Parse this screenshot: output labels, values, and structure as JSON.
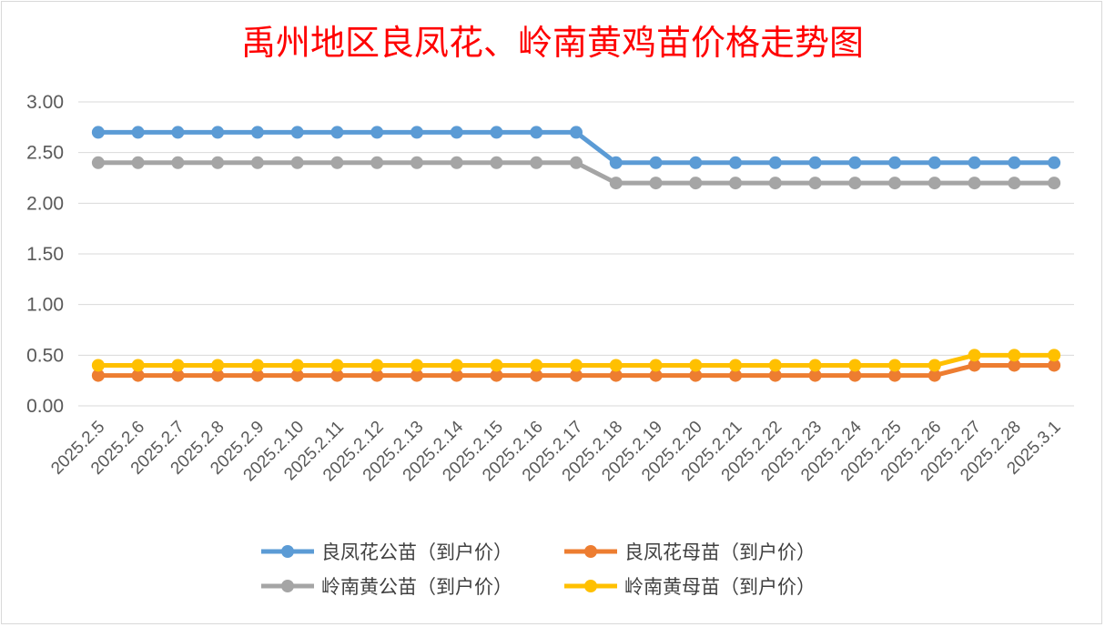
{
  "chart_data": {
    "type": "line",
    "title": "禹州地区良凤花、岭南黄鸡苗价格走势图",
    "categories": [
      "2025.2.5",
      "2025.2.6",
      "2025.2.7",
      "2025.2.8",
      "2025.2.9",
      "2025.2.10",
      "2025.2.11",
      "2025.2.12",
      "2025.2.13",
      "2025.2.14",
      "2025.2.15",
      "2025.2.16",
      "2025.2.17",
      "2025.2.18",
      "2025.2.19",
      "2025.2.20",
      "2025.2.21",
      "2025.2.22",
      "2025.2.23",
      "2025.2.24",
      "2025.2.25",
      "2025.2.26",
      "2025.2.27",
      "2025.2.28",
      "2025.3.1"
    ],
    "yticks": [
      "0.00",
      "0.50",
      "1.00",
      "1.50",
      "2.00",
      "2.50",
      "3.00"
    ],
    "ylim": [
      0,
      3
    ],
    "grid": true,
    "legend_position": "bottom",
    "series": [
      {
        "name": "良凤花公苗（到户价）",
        "color": "#5b9bd5",
        "values": [
          2.7,
          2.7,
          2.7,
          2.7,
          2.7,
          2.7,
          2.7,
          2.7,
          2.7,
          2.7,
          2.7,
          2.7,
          2.7,
          2.4,
          2.4,
          2.4,
          2.4,
          2.4,
          2.4,
          2.4,
          2.4,
          2.4,
          2.4,
          2.4,
          2.4
        ]
      },
      {
        "name": "良凤花母苗（到户价）",
        "color": "#ed7d31",
        "values": [
          0.3,
          0.3,
          0.3,
          0.3,
          0.3,
          0.3,
          0.3,
          0.3,
          0.3,
          0.3,
          0.3,
          0.3,
          0.3,
          0.3,
          0.3,
          0.3,
          0.3,
          0.3,
          0.3,
          0.3,
          0.3,
          0.3,
          0.4,
          0.4,
          0.4
        ]
      },
      {
        "name": "岭南黄公苗（到户价）",
        "color": "#a5a5a5",
        "values": [
          2.4,
          2.4,
          2.4,
          2.4,
          2.4,
          2.4,
          2.4,
          2.4,
          2.4,
          2.4,
          2.4,
          2.4,
          2.4,
          2.2,
          2.2,
          2.2,
          2.2,
          2.2,
          2.2,
          2.2,
          2.2,
          2.2,
          2.2,
          2.2,
          2.2
        ]
      },
      {
        "name": "岭南黄母苗（到户价）",
        "color": "#ffc000",
        "values": [
          0.4,
          0.4,
          0.4,
          0.4,
          0.4,
          0.4,
          0.4,
          0.4,
          0.4,
          0.4,
          0.4,
          0.4,
          0.4,
          0.4,
          0.4,
          0.4,
          0.4,
          0.4,
          0.4,
          0.4,
          0.4,
          0.4,
          0.5,
          0.5,
          0.5
        ]
      }
    ]
  }
}
